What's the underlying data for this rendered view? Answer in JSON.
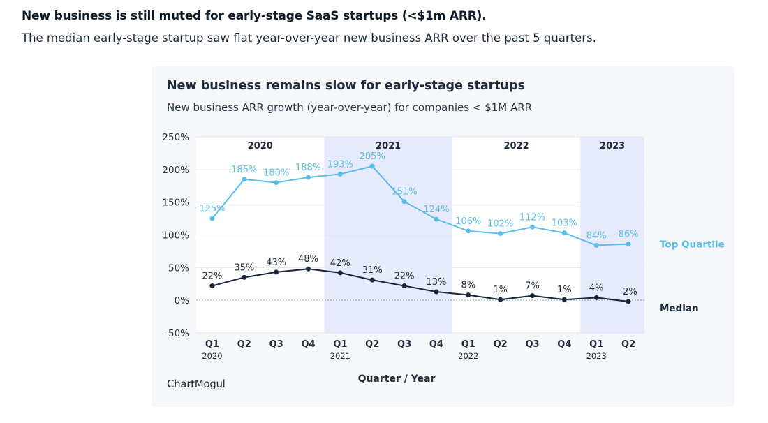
{
  "heading": "New business is still muted for early-stage SaaS startups (<$1m ARR).",
  "subheading": "The median early-stage startup saw flat year-over-year new business ARR over the past 5 quarters.",
  "brand": "ChartMogul",
  "colors": {
    "top_quartile": "#5bbde6",
    "median": "#16273a",
    "shade": "#e7eafc",
    "card": "#f6f7fb"
  },
  "chart_data": {
    "type": "line",
    "title": "New business remains slow for early-stage startups",
    "subtitle": "New business ARR growth (year-over-year) for companies < $1M ARR",
    "xlabel": "Quarter / Year",
    "ylabel": "",
    "ylim": [
      -50,
      250
    ],
    "yticks": [
      "250%",
      "200%",
      "150%",
      "100%",
      "50%",
      "0%",
      "-50%"
    ],
    "categories": [
      "Q1",
      "Q2",
      "Q3",
      "Q4",
      "Q1",
      "Q2",
      "Q3",
      "Q4",
      "Q1",
      "Q2",
      "Q3",
      "Q4",
      "Q1",
      "Q2"
    ],
    "category_years": [
      "2020",
      "",
      "",
      "",
      "2021",
      "",
      "",
      "",
      "2022",
      "",
      "",
      "",
      "2023",
      ""
    ],
    "year_groups": [
      {
        "label": "2020",
        "shaded": false
      },
      {
        "label": "2021",
        "shaded": true
      },
      {
        "label": "2022",
        "shaded": false
      },
      {
        "label": "2023",
        "shaded": true
      }
    ],
    "series": [
      {
        "name": "Top Quartile",
        "values": [
          125,
          185,
          180,
          188,
          193,
          205,
          151,
          124,
          106,
          102,
          112,
          103,
          84,
          86
        ],
        "labels": [
          "125%",
          "185%",
          "180%",
          "188%",
          "193%",
          "205%",
          "151%",
          "124%",
          "106%",
          "102%",
          "112%",
          "103%",
          "84%",
          "86%"
        ]
      },
      {
        "name": "Median",
        "values": [
          22,
          35,
          43,
          48,
          42,
          31,
          22,
          13,
          8,
          1,
          7,
          1,
          4,
          -2
        ],
        "labels": [
          "22%",
          "35%",
          "43%",
          "48%",
          "42%",
          "31%",
          "22%",
          "13%",
          "8%",
          "1%",
          "7%",
          "1%",
          "4%",
          "-2%"
        ]
      }
    ],
    "grid": true,
    "legend": "right"
  }
}
